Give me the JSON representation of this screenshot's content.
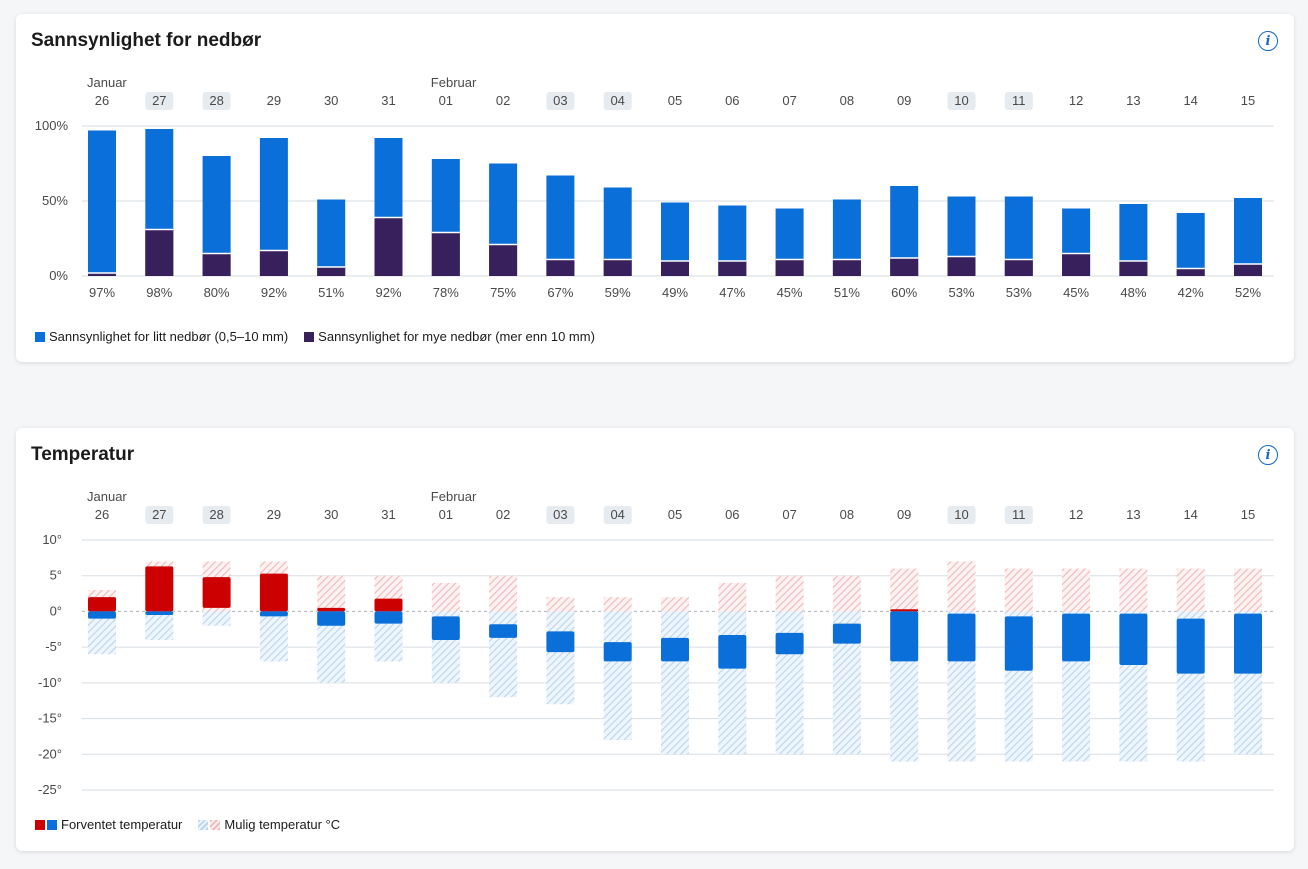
{
  "colors": {
    "blue": "#0b6fd9",
    "purple": "#37205c",
    "red": "#cc0000",
    "pale_blue": "#b8d5ee",
    "pale_red": "#f0b8b8",
    "weekend_bg": "#e6ebef",
    "grid": "#d7dde3",
    "axis_text": "#4a4a4a",
    "info": "#1668c4"
  },
  "precip": {
    "title": "Sannsynlighet for nedbør",
    "info_label": "i",
    "legend_light": "Sannsynlighet for litt nedbør (0,5–10 mm)",
    "legend_heavy": "Sannsynlighet for mye nedbør (mer enn 10 mm)"
  },
  "temp": {
    "title": "Temperatur",
    "info_label": "i",
    "legend_expected": "Forventet temperatur",
    "legend_possible": "Mulig temperatur °C"
  },
  "chart_data": [
    {
      "type": "bar",
      "title": "Sannsynlighet for nedbør",
      "months": [
        {
          "label": "Januar",
          "index": 0
        },
        {
          "label": "Februar",
          "index": 6
        }
      ],
      "categories": [
        "26",
        "27",
        "28",
        "29",
        "30",
        "31",
        "01",
        "02",
        "03",
        "04",
        "05",
        "06",
        "07",
        "08",
        "09",
        "10",
        "11",
        "12",
        "13",
        "14",
        "15"
      ],
      "highlighted": [
        "27",
        "28",
        "03",
        "04",
        "10",
        "11"
      ],
      "y_ticks": [
        "0%",
        "50%",
        "100%"
      ],
      "y_tick_values": [
        0,
        50,
        100
      ],
      "ylim": [
        0,
        100
      ],
      "totals_labels": [
        "97%",
        "98%",
        "80%",
        "92%",
        "51%",
        "92%",
        "78%",
        "75%",
        "67%",
        "59%",
        "49%",
        "47%",
        "45%",
        "51%",
        "60%",
        "53%",
        "53%",
        "45%",
        "48%",
        "42%",
        "52%"
      ],
      "series": [
        {
          "name": "Sannsynlighet for litt nedbør (0,5–10 mm)",
          "values": [
            97,
            98,
            80,
            92,
            51,
            92,
            78,
            75,
            67,
            59,
            49,
            47,
            45,
            51,
            60,
            53,
            53,
            45,
            48,
            42,
            52
          ]
        },
        {
          "name": "Sannsynlighet for mye nedbør (mer enn 10 mm)",
          "values": [
            2,
            31,
            15,
            17,
            6,
            39,
            29,
            21,
            11,
            11,
            10,
            10,
            11,
            11,
            12,
            13,
            11,
            15,
            10,
            5,
            8
          ]
        }
      ]
    },
    {
      "type": "range-bar",
      "title": "Temperatur",
      "months": [
        {
          "label": "Januar",
          "index": 0
        },
        {
          "label": "Februar",
          "index": 6
        }
      ],
      "categories": [
        "26",
        "27",
        "28",
        "29",
        "30",
        "31",
        "01",
        "02",
        "03",
        "04",
        "05",
        "06",
        "07",
        "08",
        "09",
        "10",
        "11",
        "12",
        "13",
        "14",
        "15"
      ],
      "highlighted": [
        "27",
        "28",
        "03",
        "04",
        "10",
        "11"
      ],
      "y_ticks": [
        "10°",
        "5°",
        "0°",
        "-5°",
        "-10°",
        "-15°",
        "-20°",
        "-25°"
      ],
      "y_tick_values": [
        10,
        5,
        0,
        -5,
        -10,
        -15,
        -20,
        -25
      ],
      "ylim": [
        -25,
        10
      ],
      "expected_min": [
        -1,
        -0.5,
        0.5,
        -0.7,
        -2,
        -1.7,
        -4,
        -3.7,
        -5.7,
        -7,
        -7,
        -8,
        -6,
        -4.5,
        -7,
        -7,
        -8.3,
        -7,
        -7.5,
        -8.7,
        -8.7
      ],
      "expected_max": [
        2,
        6.3,
        4.8,
        5.3,
        0.5,
        1.8,
        -0.7,
        -1.8,
        -2.8,
        -4.3,
        -3.7,
        -3.3,
        -3,
        -1.7,
        0.3,
        -0.3,
        -0.7,
        -0.3,
        -0.3,
        -1,
        -0.3
      ],
      "possible_min": [
        -6,
        -4,
        -2,
        -7,
        -10,
        -7,
        -10,
        -12,
        -13,
        -18,
        -20,
        -20,
        -20,
        -20,
        -21,
        -21,
        -21,
        -21,
        -21,
        -21,
        -20
      ],
      "possible_max": [
        3,
        7,
        7,
        7,
        5,
        5,
        4,
        5,
        2,
        2,
        2,
        4,
        5,
        5,
        6,
        7,
        6,
        6,
        6,
        6,
        6
      ]
    }
  ]
}
